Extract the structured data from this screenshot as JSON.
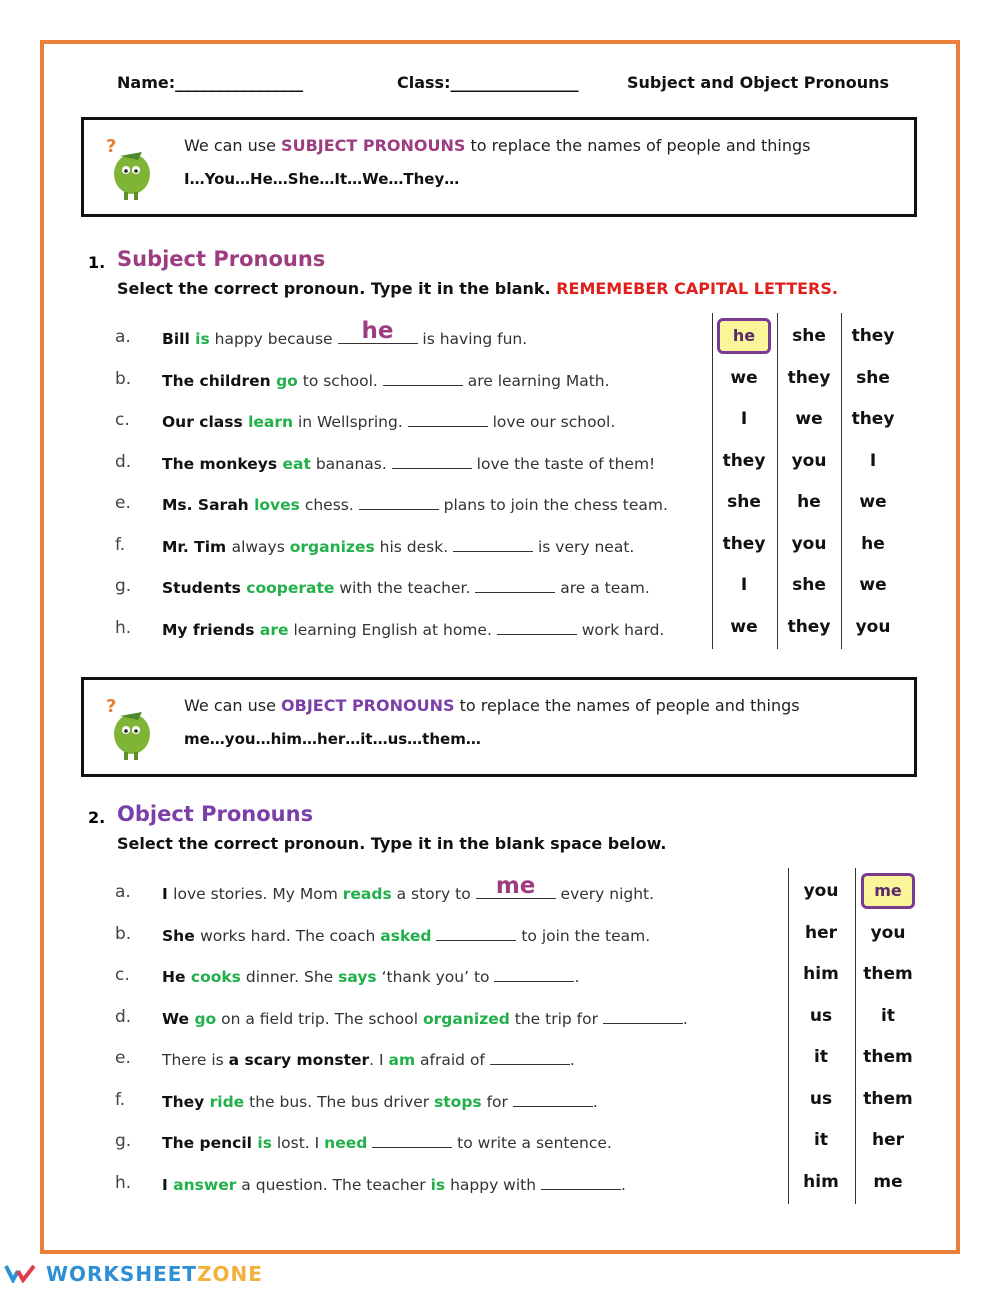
{
  "header": {
    "name_label": "Name:________________",
    "class_label": "Class:________________",
    "title": "Subject and Object Pronouns"
  },
  "box1": {
    "prefix": "We can use ",
    "keyword": "SUBJECT PRONOUNS",
    "suffix": " to replace the names of people and things",
    "list": "I…You…He…She…It…We…They…",
    "keyword_color": "#9b3d80"
  },
  "box2": {
    "prefix": "We can use ",
    "keyword": "OBJECT PRONOUNS",
    "suffix": " to replace the names of people and things",
    "list": "me…you…him…her…it…us…them…",
    "keyword_color": "#7b3fa8"
  },
  "section1": {
    "number": "1.",
    "title": "Subject Pronouns",
    "title_color": "#9b3d80",
    "instruction": "Select the correct pronoun. Type it in the blank. ",
    "warning": "REMEMEBER CAPITAL LETTERS.",
    "warning_color": "#e0201c",
    "rows": [
      {
        "letter": "a.",
        "segments": [
          {
            "t": "Bill ",
            "s": "b"
          },
          {
            "t": "is",
            "s": "g"
          },
          {
            "t": " happy because ",
            "s": ""
          },
          {
            "t": "he",
            "s": "blank"
          },
          {
            "t": " is having fun.",
            "s": ""
          }
        ],
        "options": [
          "he",
          "she",
          "they"
        ],
        "selected": 0
      },
      {
        "letter": "b.",
        "segments": [
          {
            "t": "The children ",
            "s": "b"
          },
          {
            "t": "go",
            "s": "g"
          },
          {
            "t": " to school. ",
            "s": ""
          },
          {
            "t": "",
            "s": "blank"
          },
          {
            "t": " are learning Math.",
            "s": ""
          }
        ],
        "options": [
          "we",
          "they",
          "she"
        ],
        "selected": -1
      },
      {
        "letter": "c.",
        "segments": [
          {
            "t": "Our class ",
            "s": "b"
          },
          {
            "t": "learn",
            "s": "g"
          },
          {
            "t": " in Wellspring. ",
            "s": ""
          },
          {
            "t": "",
            "s": "blank"
          },
          {
            "t": " love our school.",
            "s": ""
          }
        ],
        "options": [
          "I",
          "we",
          "they"
        ],
        "selected": -1
      },
      {
        "letter": "d.",
        "segments": [
          {
            "t": "The ",
            "s": "b"
          },
          {
            "t": "monkeys ",
            "s": "b"
          },
          {
            "t": "eat",
            "s": "g"
          },
          {
            "t": " bananas. ",
            "s": ""
          },
          {
            "t": "",
            "s": "blank"
          },
          {
            "t": " love the taste of them!",
            "s": ""
          }
        ],
        "options": [
          "they",
          "you",
          "I"
        ],
        "selected": -1
      },
      {
        "letter": "e.",
        "segments": [
          {
            "t": "Ms. Sarah ",
            "s": "b"
          },
          {
            "t": "loves",
            "s": "g"
          },
          {
            "t": " chess. ",
            "s": ""
          },
          {
            "t": "",
            "s": "blank"
          },
          {
            "t": " plans to join the chess team.",
            "s": ""
          }
        ],
        "options": [
          "she",
          "he",
          "we"
        ],
        "selected": -1
      },
      {
        "letter": "f.",
        "segments": [
          {
            "t": "Mr. Tim ",
            "s": "b"
          },
          {
            "t": "always ",
            "s": ""
          },
          {
            "t": "organizes",
            "s": "g"
          },
          {
            "t": " his desk. ",
            "s": ""
          },
          {
            "t": "",
            "s": "blank"
          },
          {
            "t": " is very neat.",
            "s": ""
          }
        ],
        "options": [
          "they",
          "you",
          "he"
        ],
        "selected": -1
      },
      {
        "letter": "g.",
        "segments": [
          {
            "t": "Students ",
            "s": "b"
          },
          {
            "t": "cooperate",
            "s": "g"
          },
          {
            "t": " with the teacher. ",
            "s": ""
          },
          {
            "t": "",
            "s": "blank"
          },
          {
            "t": " are a team.",
            "s": ""
          }
        ],
        "options": [
          "I",
          "she",
          "we"
        ],
        "selected": -1
      },
      {
        "letter": "h.",
        "segments": [
          {
            "t": "My friends ",
            "s": "b"
          },
          {
            "t": "are",
            "s": "g"
          },
          {
            "t": " learning English at home. ",
            "s": ""
          },
          {
            "t": "",
            "s": "blank"
          },
          {
            "t": " work hard.",
            "s": ""
          }
        ],
        "options": [
          "we",
          "they",
          "you"
        ],
        "selected": -1
      }
    ]
  },
  "section2": {
    "number": "2.",
    "title": "Object Pronouns",
    "title_color": "#7b3fa8",
    "instruction": "Select the correct pronoun. Type it in the blank space below.",
    "rows": [
      {
        "letter": "a.",
        "segments": [
          {
            "t": "I ",
            "s": "b"
          },
          {
            "t": "love stories. My Mom ",
            "s": ""
          },
          {
            "t": "reads",
            "s": "g"
          },
          {
            "t": " a story to ",
            "s": ""
          },
          {
            "t": "me",
            "s": "blank"
          },
          {
            "t": " every night.",
            "s": ""
          }
        ],
        "options": [
          "you",
          "me"
        ],
        "selected": 1
      },
      {
        "letter": "b.",
        "segments": [
          {
            "t": "She ",
            "s": "b"
          },
          {
            "t": "works hard. The coach ",
            "s": ""
          },
          {
            "t": "asked",
            "s": "g"
          },
          {
            "t": " ",
            "s": ""
          },
          {
            "t": "",
            "s": "blank"
          },
          {
            "t": " to join the team.",
            "s": ""
          }
        ],
        "options": [
          "her",
          "you"
        ],
        "selected": -1
      },
      {
        "letter": "c.",
        "segments": [
          {
            "t": "He ",
            "s": "b"
          },
          {
            "t": "cooks",
            "s": "g"
          },
          {
            "t": " dinner. She ",
            "s": ""
          },
          {
            "t": "says",
            "s": "g"
          },
          {
            "t": " ‘thank you’ to ",
            "s": ""
          },
          {
            "t": "",
            "s": "blank"
          },
          {
            "t": ".",
            "s": ""
          }
        ],
        "options": [
          "him",
          "them"
        ],
        "selected": -1
      },
      {
        "letter": "d.",
        "segments": [
          {
            "t": "We ",
            "s": "b"
          },
          {
            "t": "go",
            "s": "g"
          },
          {
            "t": " on a field trip. The school ",
            "s": ""
          },
          {
            "t": "organized",
            "s": "g"
          },
          {
            "t": " the trip for ",
            "s": ""
          },
          {
            "t": "",
            "s": "blank"
          },
          {
            "t": ".",
            "s": ""
          }
        ],
        "options": [
          "us",
          "it"
        ],
        "selected": -1
      },
      {
        "letter": "e.",
        "segments": [
          {
            "t": "There is ",
            "s": ""
          },
          {
            "t": "a scary monster",
            "s": "b"
          },
          {
            "t": ". I ",
            "s": ""
          },
          {
            "t": "am",
            "s": "g"
          },
          {
            "t": " afraid of ",
            "s": ""
          },
          {
            "t": "",
            "s": "blank"
          },
          {
            "t": ".",
            "s": ""
          }
        ],
        "options": [
          "it",
          "them"
        ],
        "selected": -1
      },
      {
        "letter": "f.",
        "segments": [
          {
            "t": "They ",
            "s": "b"
          },
          {
            "t": "ride",
            "s": "g"
          },
          {
            "t": " the bus. The bus driver ",
            "s": ""
          },
          {
            "t": "stops",
            "s": "g"
          },
          {
            "t": " for ",
            "s": ""
          },
          {
            "t": "",
            "s": "blank"
          },
          {
            "t": ".",
            "s": ""
          }
        ],
        "options": [
          "us",
          "them"
        ],
        "selected": -1
      },
      {
        "letter": "g.",
        "segments": [
          {
            "t": "The pencil ",
            "s": "b"
          },
          {
            "t": "is",
            "s": "g"
          },
          {
            "t": " lost. I ",
            "s": ""
          },
          {
            "t": "need",
            "s": "g"
          },
          {
            "t": " ",
            "s": ""
          },
          {
            "t": "",
            "s": "blank"
          },
          {
            "t": " to write a sentence.",
            "s": ""
          }
        ],
        "options": [
          "it",
          "her"
        ],
        "selected": -1
      },
      {
        "letter": "h.",
        "segments": [
          {
            "t": "I ",
            "s": "b"
          },
          {
            "t": "answer",
            "s": "g"
          },
          {
            "t": " a question. The teacher ",
            "s": ""
          },
          {
            "t": "is",
            "s": "g"
          },
          {
            "t": " happy with ",
            "s": ""
          },
          {
            "t": "",
            "s": "blank"
          },
          {
            "t": ".",
            "s": ""
          }
        ],
        "options": [
          "him",
          "me"
        ],
        "selected": -1
      }
    ]
  },
  "footer": {
    "brand_a": "WORKSHEET",
    "brand_b": "ZONE",
    "color_a": "#2d8fd5",
    "color_b": "#f0b23a"
  },
  "border_color": "#e8803a"
}
